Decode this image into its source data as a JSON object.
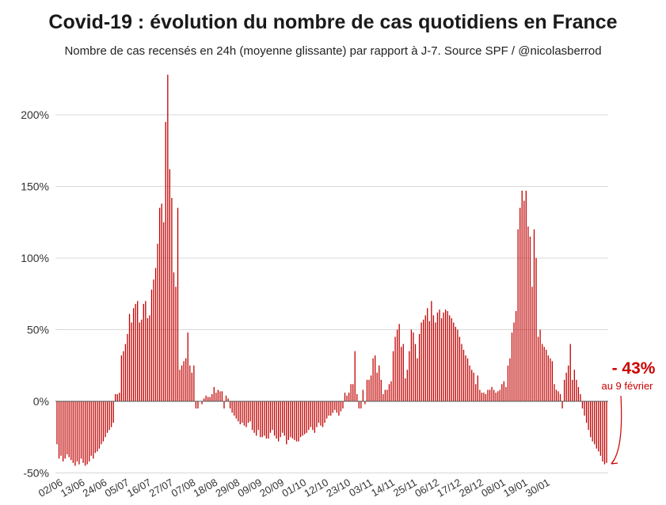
{
  "header": {
    "title": "Covid-19 : évolution du nombre de cas quotidiens en France",
    "subtitle": "Nombre de cas recensés en 24h (moyenne glissante) par rapport à J-7. Source SPF / @nicolasberrod"
  },
  "colors": {
    "bar": "#c00000",
    "callout": "#cc0000",
    "grid": "#d8d8d8"
  },
  "callout": {
    "value": "- 43%",
    "date": "au 9 février"
  },
  "chart_data": {
    "type": "bar",
    "title": "Covid-19 : évolution du nombre de cas quotidiens en France",
    "subtitle": "Nombre de cas recensés en 24h (moyenne glissante) par rapport à J-7. Source SPF / @nicolasberrod",
    "xlabel": "",
    "ylabel": "",
    "ylim": [
      -50,
      230
    ],
    "yticks": [
      -50,
      0,
      50,
      100,
      150,
      200
    ],
    "ytick_labels": [
      "-50%",
      "0%",
      "50%",
      "100%",
      "150%",
      "200%"
    ],
    "grid": true,
    "x_start": "02/06",
    "x_end": "09/02",
    "xtick_labels": [
      "02/06",
      "13/06",
      "24/06",
      "05/07",
      "16/07",
      "27/07",
      "07/08",
      "18/08",
      "29/08",
      "09/09",
      "20/09",
      "01/10",
      "12/10",
      "23/10",
      "03/11",
      "14/11",
      "25/11",
      "06/12",
      "17/12",
      "28/12",
      "08/01",
      "19/01",
      "30/01"
    ],
    "series": [
      {
        "values": [
          -30,
          -40,
          -38,
          -42,
          -40,
          -37,
          -39,
          -41,
          -43,
          -45,
          -42,
          -44,
          -40,
          -43,
          -45,
          -44,
          -42,
          -38,
          -40,
          -36,
          -35,
          -33,
          -30,
          -28,
          -25,
          -22,
          -20,
          -18,
          -15,
          5,
          5,
          6,
          32,
          35,
          40,
          47,
          61,
          55,
          65,
          68,
          70,
          55,
          57,
          68,
          70,
          58,
          60,
          78,
          85,
          93,
          110,
          135,
          138,
          125,
          195,
          228,
          162,
          142,
          90,
          80,
          135,
          22,
          25,
          28,
          30,
          48,
          25,
          20,
          25,
          -5,
          -5,
          0,
          -2,
          2,
          4,
          3,
          3,
          5,
          10,
          6,
          8,
          7,
          7,
          -5,
          4,
          2,
          -5,
          -8,
          -10,
          -12,
          -14,
          -16,
          -15,
          -17,
          -18,
          -15,
          -14,
          -20,
          -22,
          -24,
          -20,
          -25,
          -25,
          -24,
          -26,
          -26,
          -22,
          -20,
          -24,
          -26,
          -28,
          -25,
          -22,
          -24,
          -30,
          -27,
          -25,
          -26,
          -27,
          -28,
          -28,
          -25,
          -24,
          -23,
          -22,
          -20,
          -18,
          -20,
          -22,
          -18,
          -15,
          -17,
          -18,
          -15,
          -12,
          -10,
          -10,
          -8,
          -6,
          -8,
          -10,
          -7,
          -5,
          6,
          4,
          6,
          12,
          12,
          35,
          5,
          -5,
          -5,
          8,
          -2,
          15,
          15,
          18,
          30,
          32,
          20,
          25,
          15,
          5,
          8,
          8,
          12,
          14,
          35,
          45,
          50,
          54,
          38,
          40,
          16,
          22,
          35,
          50,
          48,
          40,
          30,
          47,
          55,
          57,
          60,
          65,
          56,
          70,
          60,
          55,
          62,
          64,
          58,
          62,
          64,
          63,
          60,
          58,
          55,
          52,
          50,
          45,
          40,
          36,
          32,
          30,
          25,
          22,
          20,
          12,
          18,
          8,
          6,
          6,
          5,
          8,
          8,
          10,
          8,
          6,
          7,
          8,
          12,
          14,
          10,
          25,
          30,
          48,
          55,
          63,
          120,
          135,
          147,
          140,
          147,
          122,
          115,
          80,
          120,
          100,
          45,
          50,
          40,
          38,
          36,
          32,
          30,
          28,
          12,
          8,
          7,
          5,
          -5,
          15,
          20,
          25,
          40,
          15,
          22,
          15,
          10,
          5,
          -5,
          -10,
          -15,
          -20,
          -25,
          -28,
          -30,
          -33,
          -35,
          -38,
          -42,
          -44,
          -43
        ]
      }
    ]
  }
}
